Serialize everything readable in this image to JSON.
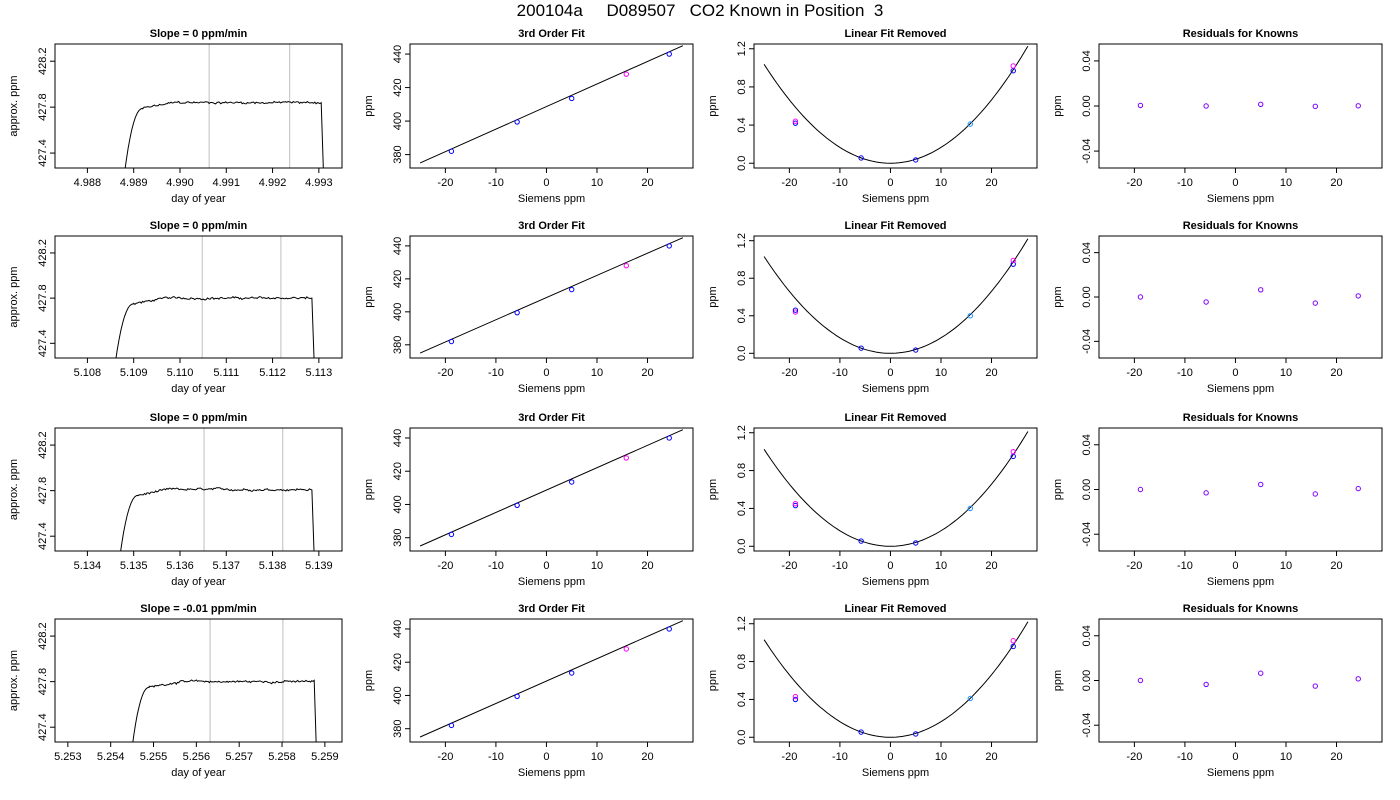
{
  "page": {
    "title": "200104a     D089507   CO2 Known in Position  3"
  },
  "styles": {
    "axis_color": "#000000",
    "line_color": "#000000",
    "vline_color": "#bebebe",
    "blue": "#0000ff",
    "magenta": "#ff00ff",
    "lightblue": "#1e90ff",
    "purple": "#7f00ff"
  },
  "chart_data": [
    {
      "type": "line",
      "row": 0,
      "col": 0,
      "title": "Slope =  0  ppm/min",
      "xlabel": "day of year",
      "ylabel": "approx. ppm",
      "xlim": [
        4.9873,
        4.9935
      ],
      "ylim": [
        427.27,
        428.35
      ],
      "xticks": [
        4.988,
        4.989,
        4.99,
        4.991,
        4.992,
        4.993
      ],
      "xtick_labels": [
        "4.988",
        "4.989",
        "4.990",
        "4.991",
        "4.992",
        "4.993"
      ],
      "yticks": [
        427.4,
        427.8,
        428.2
      ],
      "ytick_labels": [
        "427.4",
        "427.8",
        "428.2"
      ],
      "vlines": [
        4.99063,
        4.99237
      ],
      "trace": {
        "start": 4.9888,
        "end": 4.9931,
        "plateau_start": 4.9892,
        "level": 427.84,
        "noise": 0.015
      }
    },
    {
      "type": "scatter",
      "row": 0,
      "col": 1,
      "title": "3rd Order Fit",
      "xlabel": "Siemens ppm",
      "ylabel": "ppm",
      "xlim": [
        -27,
        29
      ],
      "ylim": [
        372,
        446
      ],
      "xticks": [
        -20,
        -10,
        0,
        10,
        20
      ],
      "xtick_labels": [
        "-20",
        "-10",
        "0",
        "10",
        "20"
      ],
      "yticks": [
        380,
        400,
        420,
        440
      ],
      "ytick_labels": [
        "380",
        "400",
        "420",
        "440"
      ],
      "fit_line": {
        "x": [
          -25,
          27
        ],
        "y": [
          375,
          445
        ]
      },
      "points": [
        {
          "x": -18.8,
          "y": 382,
          "color": "blue"
        },
        {
          "x": -5.8,
          "y": 399.5,
          "color": "blue"
        },
        {
          "x": 5,
          "y": 413.5,
          "color": "blue"
        },
        {
          "x": 15.8,
          "y": 428,
          "color": "magenta"
        },
        {
          "x": 24.3,
          "y": 440,
          "color": "blue"
        }
      ]
    },
    {
      "type": "scatter",
      "row": 0,
      "col": 2,
      "title": "Linear Fit Removed",
      "xlabel": "Siemens ppm",
      "ylabel": "ppm",
      "xlim": [
        -27,
        29
      ],
      "ylim": [
        -0.05,
        1.25
      ],
      "xticks": [
        -20,
        -10,
        0,
        10,
        20
      ],
      "xtick_labels": [
        "-20",
        "-10",
        "0",
        "10",
        "20"
      ],
      "yticks": [
        0,
        0.4,
        0.8,
        1.2
      ],
      "ytick_labels": [
        "0.0",
        "0.4",
        "0.8",
        "1.2"
      ],
      "curve": {
        "x_from": -25,
        "x_to": 27.2,
        "coef": 0.00166
      },
      "points": [
        {
          "x": -18.8,
          "y": 0.42,
          "color": "blue"
        },
        {
          "x": -18.8,
          "y": 0.44,
          "color": "magenta"
        },
        {
          "x": -5.8,
          "y": 0.055,
          "color": "blue"
        },
        {
          "x": 5,
          "y": 0.035,
          "color": "blue"
        },
        {
          "x": 15.8,
          "y": 0.41,
          "color": "lightblue"
        },
        {
          "x": 24.3,
          "y": 0.97,
          "color": "blue"
        },
        {
          "x": 24.3,
          "y": 1.02,
          "color": "magenta"
        }
      ]
    },
    {
      "type": "scatter",
      "row": 0,
      "col": 3,
      "title": "Residuals for Knowns",
      "xlabel": "Siemens ppm",
      "ylabel": "ppm",
      "xlim": [
        -27,
        29
      ],
      "ylim": [
        -0.055,
        0.055
      ],
      "xticks": [
        -20,
        -10,
        0,
        10,
        20
      ],
      "xtick_labels": [
        "-20",
        "-10",
        "0",
        "10",
        "20"
      ],
      "yticks": [
        -0.04,
        0,
        0.04
      ],
      "ytick_labels": [
        "-0.04",
        "0.00",
        "0.04"
      ],
      "points": [
        {
          "x": -18.8,
          "y": 0.0005,
          "color": "purple"
        },
        {
          "x": -5.8,
          "y": 0.0,
          "color": "purple"
        },
        {
          "x": 5,
          "y": 0.0015,
          "color": "purple"
        },
        {
          "x": 15.8,
          "y": -0.0003,
          "color": "purple"
        },
        {
          "x": 24.3,
          "y": 0.0002,
          "color": "purple"
        }
      ]
    },
    {
      "type": "line",
      "row": 1,
      "col": 0,
      "title": "Slope =  0  ppm/min",
      "xlabel": "day of year",
      "ylabel": "approx. ppm",
      "xlim": [
        5.1073,
        5.1135
      ],
      "ylim": [
        427.27,
        428.35
      ],
      "xticks": [
        5.108,
        5.109,
        5.11,
        5.111,
        5.112,
        5.113
      ],
      "xtick_labels": [
        "5.108",
        "5.109",
        "5.110",
        "5.111",
        "5.112",
        "5.113"
      ],
      "yticks": [
        427.4,
        427.8,
        428.2
      ],
      "ytick_labels": [
        "427.4",
        "427.8",
        "428.2"
      ],
      "vlines": [
        5.11048,
        5.11218
      ],
      "trace": {
        "start": 5.1086,
        "end": 5.1129,
        "plateau_start": 5.109,
        "level": 427.8,
        "noise": 0.015
      }
    },
    {
      "type": "scatter",
      "row": 1,
      "col": 1,
      "title": "3rd Order Fit",
      "xlabel": "Siemens ppm",
      "ylabel": "ppm",
      "xlim": [
        -27,
        29
      ],
      "ylim": [
        372,
        446
      ],
      "xticks": [
        -20,
        -10,
        0,
        10,
        20
      ],
      "xtick_labels": [
        "-20",
        "-10",
        "0",
        "10",
        "20"
      ],
      "yticks": [
        380,
        400,
        420,
        440
      ],
      "ytick_labels": [
        "380",
        "400",
        "420",
        "440"
      ],
      "fit_line": {
        "x": [
          -25,
          27
        ],
        "y": [
          375,
          445
        ]
      },
      "points": [
        {
          "x": -18.8,
          "y": 382,
          "color": "blue"
        },
        {
          "x": -5.8,
          "y": 399.5,
          "color": "blue"
        },
        {
          "x": 5,
          "y": 413.5,
          "color": "blue"
        },
        {
          "x": 15.8,
          "y": 428,
          "color": "magenta"
        },
        {
          "x": 24.3,
          "y": 440,
          "color": "blue"
        }
      ]
    },
    {
      "type": "scatter",
      "row": 1,
      "col": 2,
      "title": "Linear Fit Removed",
      "xlabel": "Siemens ppm",
      "ylabel": "ppm",
      "xlim": [
        -27,
        29
      ],
      "ylim": [
        -0.05,
        1.25
      ],
      "xticks": [
        -20,
        -10,
        0,
        10,
        20
      ],
      "xtick_labels": [
        "-20",
        "-10",
        "0",
        "10",
        "20"
      ],
      "yticks": [
        0,
        0.4,
        0.8,
        1.2
      ],
      "ytick_labels": [
        "0.0",
        "0.4",
        "0.8",
        "1.2"
      ],
      "curve": {
        "x_from": -25,
        "x_to": 27.2,
        "coef": 0.00165
      },
      "points": [
        {
          "x": -18.8,
          "y": 0.44,
          "color": "magenta"
        },
        {
          "x": -18.8,
          "y": 0.46,
          "color": "blue"
        },
        {
          "x": -5.8,
          "y": 0.055,
          "color": "blue"
        },
        {
          "x": 5,
          "y": 0.035,
          "color": "blue"
        },
        {
          "x": 15.8,
          "y": 0.4,
          "color": "lightblue"
        },
        {
          "x": 24.3,
          "y": 0.95,
          "color": "blue"
        },
        {
          "x": 24.3,
          "y": 0.99,
          "color": "magenta"
        }
      ]
    },
    {
      "type": "scatter",
      "row": 1,
      "col": 3,
      "title": "Residuals for Knowns",
      "xlabel": "Siemens ppm",
      "ylabel": "ppm",
      "xlim": [
        -27,
        29
      ],
      "ylim": [
        -0.055,
        0.055
      ],
      "xticks": [
        -20,
        -10,
        0,
        10,
        20
      ],
      "xtick_labels": [
        "-20",
        "-10",
        "0",
        "10",
        "20"
      ],
      "yticks": [
        -0.04,
        0,
        0.04
      ],
      "ytick_labels": [
        "-0.04",
        "0.00",
        "0.04"
      ],
      "points": [
        {
          "x": -18.8,
          "y": 0.0,
          "color": "purple"
        },
        {
          "x": -5.8,
          "y": -0.0045,
          "color": "purple"
        },
        {
          "x": 5,
          "y": 0.0065,
          "color": "purple"
        },
        {
          "x": 15.8,
          "y": -0.0055,
          "color": "purple"
        },
        {
          "x": 24.3,
          "y": 0.001,
          "color": "purple"
        }
      ]
    },
    {
      "type": "line",
      "row": 2,
      "col": 0,
      "title": "Slope =  0  ppm/min",
      "xlabel": "day of year",
      "ylabel": "approx. ppm",
      "xlim": [
        5.1333,
        5.1395
      ],
      "ylim": [
        427.27,
        428.35
      ],
      "xticks": [
        5.134,
        5.135,
        5.136,
        5.137,
        5.138,
        5.139
      ],
      "xtick_labels": [
        "5.134",
        "5.135",
        "5.136",
        "5.137",
        "5.138",
        "5.139"
      ],
      "yticks": [
        427.4,
        427.8,
        428.2
      ],
      "ytick_labels": [
        "427.4",
        "427.8",
        "428.2"
      ],
      "vlines": [
        5.13652,
        5.13822
      ],
      "trace": {
        "start": 5.1347,
        "end": 5.1389,
        "plateau_start": 5.1351,
        "level": 427.81,
        "noise": 0.015
      }
    },
    {
      "type": "scatter",
      "row": 2,
      "col": 1,
      "title": "3rd Order Fit",
      "xlabel": "Siemens ppm",
      "ylabel": "ppm",
      "xlim": [
        -27,
        29
      ],
      "ylim": [
        372,
        446
      ],
      "xticks": [
        -20,
        -10,
        0,
        10,
        20
      ],
      "xtick_labels": [
        "-20",
        "-10",
        "0",
        "10",
        "20"
      ],
      "yticks": [
        380,
        400,
        420,
        440
      ],
      "ytick_labels": [
        "380",
        "400",
        "420",
        "440"
      ],
      "fit_line": {
        "x": [
          -25,
          27
        ],
        "y": [
          375,
          445
        ]
      },
      "points": [
        {
          "x": -18.8,
          "y": 382,
          "color": "blue"
        },
        {
          "x": -5.8,
          "y": 399.5,
          "color": "blue"
        },
        {
          "x": 5,
          "y": 413.5,
          "color": "blue"
        },
        {
          "x": 15.8,
          "y": 428,
          "color": "magenta"
        },
        {
          "x": 24.3,
          "y": 440,
          "color": "blue"
        }
      ]
    },
    {
      "type": "scatter",
      "row": 2,
      "col": 2,
      "title": "Linear Fit Removed",
      "xlabel": "Siemens ppm",
      "ylabel": "ppm",
      "xlim": [
        -27,
        29
      ],
      "ylim": [
        -0.05,
        1.25
      ],
      "xticks": [
        -20,
        -10,
        0,
        10,
        20
      ],
      "xtick_labels": [
        "-20",
        "-10",
        "0",
        "10",
        "20"
      ],
      "yticks": [
        0,
        0.4,
        0.8,
        1.2
      ],
      "ytick_labels": [
        "0.0",
        "0.4",
        "0.8",
        "1.2"
      ],
      "curve": {
        "x_from": -25,
        "x_to": 27.2,
        "coef": 0.00164
      },
      "points": [
        {
          "x": -18.8,
          "y": 0.43,
          "color": "blue"
        },
        {
          "x": -18.8,
          "y": 0.45,
          "color": "magenta"
        },
        {
          "x": -5.8,
          "y": 0.055,
          "color": "blue"
        },
        {
          "x": 5,
          "y": 0.035,
          "color": "blue"
        },
        {
          "x": 15.8,
          "y": 0.4,
          "color": "lightblue"
        },
        {
          "x": 24.3,
          "y": 0.95,
          "color": "blue"
        },
        {
          "x": 24.3,
          "y": 1.0,
          "color": "magenta"
        }
      ]
    },
    {
      "type": "scatter",
      "row": 2,
      "col": 3,
      "title": "Residuals for Knowns",
      "xlabel": "Siemens ppm",
      "ylabel": "ppm",
      "xlim": [
        -27,
        29
      ],
      "ylim": [
        -0.055,
        0.055
      ],
      "xticks": [
        -20,
        -10,
        0,
        10,
        20
      ],
      "xtick_labels": [
        "-20",
        "-10",
        "0",
        "10",
        "20"
      ],
      "yticks": [
        -0.04,
        0,
        0.04
      ],
      "ytick_labels": [
        "-0.04",
        "0.00",
        "0.04"
      ],
      "points": [
        {
          "x": -18.8,
          "y": 0.0,
          "color": "purple"
        },
        {
          "x": -5.8,
          "y": -0.003,
          "color": "purple"
        },
        {
          "x": 5,
          "y": 0.0045,
          "color": "purple"
        },
        {
          "x": 15.8,
          "y": -0.004,
          "color": "purple"
        },
        {
          "x": 24.3,
          "y": 0.0008,
          "color": "purple"
        }
      ]
    },
    {
      "type": "line",
      "row": 3,
      "col": 0,
      "title": "Slope =  -0.01  ppm/min",
      "xlabel": "day of year",
      "ylabel": "approx. ppm",
      "xlim": [
        5.2527,
        5.2594
      ],
      "ylim": [
        427.27,
        428.35
      ],
      "xticks": [
        5.253,
        5.254,
        5.255,
        5.256,
        5.257,
        5.258,
        5.259
      ],
      "xtick_labels": [
        "5.253",
        "5.254",
        "5.255",
        "5.256",
        "5.257",
        "5.258",
        "5.259"
      ],
      "yticks": [
        427.4,
        427.8,
        428.2
      ],
      "ytick_labels": [
        "427.4",
        "427.8",
        "428.2"
      ],
      "vlines": [
        5.25632,
        5.25802
      ],
      "trace": {
        "start": 5.2545,
        "end": 5.2588,
        "plateau_start": 5.2549,
        "level": 427.8,
        "noise": 0.015
      }
    },
    {
      "type": "scatter",
      "row": 3,
      "col": 1,
      "title": "3rd Order Fit",
      "xlabel": "Siemens ppm",
      "ylabel": "ppm",
      "xlim": [
        -27,
        29
      ],
      "ylim": [
        372,
        446
      ],
      "xticks": [
        -20,
        -10,
        0,
        10,
        20
      ],
      "xtick_labels": [
        "-20",
        "-10",
        "0",
        "10",
        "20"
      ],
      "yticks": [
        380,
        400,
        420,
        440
      ],
      "ytick_labels": [
        "380",
        "400",
        "420",
        "440"
      ],
      "fit_line": {
        "x": [
          -25,
          27
        ],
        "y": [
          375,
          445
        ]
      },
      "points": [
        {
          "x": -18.8,
          "y": 382,
          "color": "blue"
        },
        {
          "x": -5.8,
          "y": 399.5,
          "color": "blue"
        },
        {
          "x": 5,
          "y": 413.5,
          "color": "blue"
        },
        {
          "x": 15.8,
          "y": 428,
          "color": "magenta"
        },
        {
          "x": 24.3,
          "y": 440,
          "color": "blue"
        }
      ]
    },
    {
      "type": "scatter",
      "row": 3,
      "col": 2,
      "title": "Linear Fit Removed",
      "xlabel": "Siemens ppm",
      "ylabel": "ppm",
      "xlim": [
        -27,
        29
      ],
      "ylim": [
        -0.05,
        1.25
      ],
      "xticks": [
        -20,
        -10,
        0,
        10,
        20
      ],
      "xtick_labels": [
        "-20",
        "-10",
        "0",
        "10",
        "20"
      ],
      "yticks": [
        0,
        0.4,
        0.8,
        1.2
      ],
      "ytick_labels": [
        "0.0",
        "0.4",
        "0.8",
        "1.2"
      ],
      "curve": {
        "x_from": -25,
        "x_to": 27.2,
        "coef": 0.00165
      },
      "points": [
        {
          "x": -18.8,
          "y": 0.4,
          "color": "blue"
        },
        {
          "x": -18.8,
          "y": 0.43,
          "color": "magenta"
        },
        {
          "x": -5.8,
          "y": 0.055,
          "color": "blue"
        },
        {
          "x": 5,
          "y": 0.035,
          "color": "blue"
        },
        {
          "x": 15.8,
          "y": 0.41,
          "color": "lightblue"
        },
        {
          "x": 24.3,
          "y": 0.96,
          "color": "blue"
        },
        {
          "x": 24.3,
          "y": 1.02,
          "color": "magenta"
        }
      ]
    },
    {
      "type": "scatter",
      "row": 3,
      "col": 3,
      "title": "Residuals for Knowns",
      "xlabel": "Siemens ppm",
      "ylabel": "ppm",
      "xlim": [
        -27,
        29
      ],
      "ylim": [
        -0.055,
        0.055
      ],
      "xticks": [
        -20,
        -10,
        0,
        10,
        20
      ],
      "xtick_labels": [
        "-20",
        "-10",
        "0",
        "10",
        "20"
      ],
      "yticks": [
        -0.04,
        0,
        0.04
      ],
      "ytick_labels": [
        "-0.04",
        "0.00",
        "0.04"
      ],
      "points": [
        {
          "x": -18.8,
          "y": 0.0,
          "color": "purple"
        },
        {
          "x": -5.8,
          "y": -0.0035,
          "color": "purple"
        },
        {
          "x": 5,
          "y": 0.0065,
          "color": "purple"
        },
        {
          "x": 15.8,
          "y": -0.005,
          "color": "purple"
        },
        {
          "x": 24.3,
          "y": 0.0015,
          "color": "purple"
        }
      ]
    }
  ]
}
